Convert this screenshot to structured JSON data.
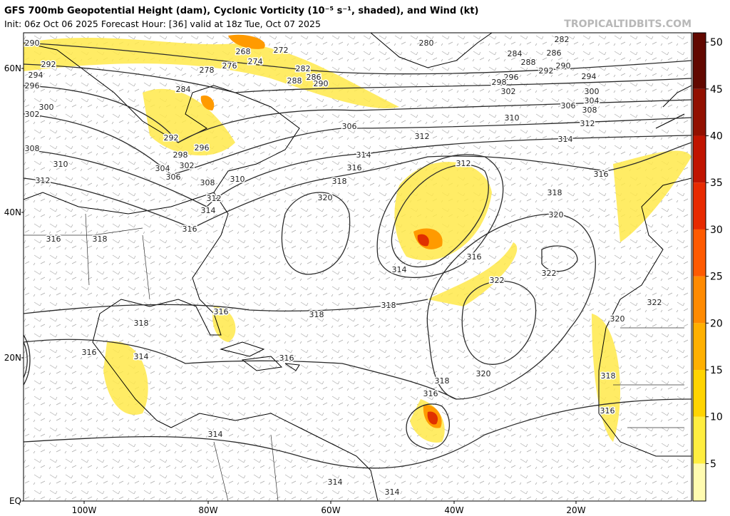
{
  "header": {
    "title": "GFS 700mb Geopotential Height (dam), Cyclonic Vorticity (10⁻⁵ s⁻¹, shaded), and Wind (kt)",
    "subtitle": "Init: 06z Oct 06 2025   Forecast Hour: [36]   valid at 18z Tue, Oct 07 2025",
    "watermark": "TROPICALTIDBITS.COM"
  },
  "map": {
    "lat_labels": [
      "60N",
      "40N",
      "20N",
      "EQ"
    ],
    "lon_labels": [
      "100W",
      "80W",
      "60W",
      "40W",
      "20W"
    ],
    "contour_labels": [
      290,
      292,
      294,
      296,
      300,
      302,
      308,
      310,
      312,
      316,
      318,
      318,
      316,
      314,
      316,
      318,
      318,
      316,
      318,
      320,
      316,
      314,
      314,
      314,
      322,
      322,
      320,
      318,
      316,
      314,
      312,
      310,
      306,
      308,
      304,
      300,
      302,
      296,
      298,
      294,
      292,
      290,
      288,
      286,
      284,
      282,
      280,
      272,
      268,
      276,
      274,
      278,
      282,
      286,
      290,
      288,
      284,
      292,
      296,
      298,
      302,
      304,
      306,
      308,
      310,
      312,
      314,
      316,
      306,
      312,
      314,
      316,
      318,
      320,
      312,
      314,
      316,
      320,
      322,
      318,
      316
    ]
  },
  "colorbar": {
    "lim": [
      1,
      51
    ],
    "ticks": [
      5,
      10,
      15,
      20,
      25,
      30,
      35,
      40,
      45,
      50
    ],
    "colors": [
      "#fffbb0",
      "#ffee40",
      "#ffd400",
      "#ffb000",
      "#ff8a00",
      "#ff5a00",
      "#e82a00",
      "#c01400",
      "#921000",
      "#620800"
    ]
  }
}
